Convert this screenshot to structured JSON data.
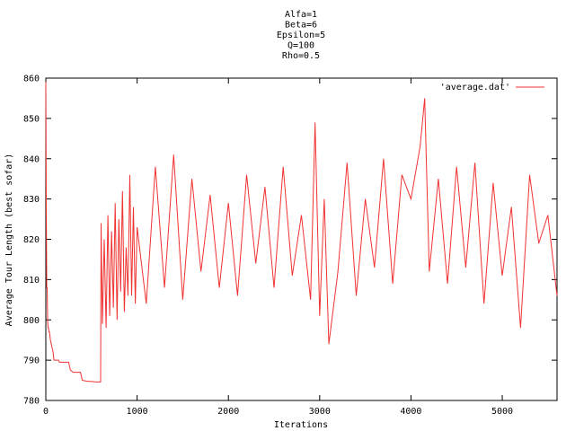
{
  "chart_data": {
    "type": "line",
    "title_lines": [
      "Alfa=1",
      "Beta=6",
      "Epsilon=5",
      "Q=100",
      "Rho=0.5"
    ],
    "xlabel": "Iterations",
    "ylabel": "Average Tour Length (best sofar)",
    "xlim": [
      0,
      5600
    ],
    "ylim": [
      780,
      860
    ],
    "x_ticks": [
      0,
      1000,
      2000,
      3000,
      4000,
      5000
    ],
    "y_ticks": [
      780,
      790,
      800,
      810,
      820,
      830,
      840,
      850,
      860
    ],
    "grid": false,
    "legend_position": "top-right",
    "colors": {
      "series": "#f03232",
      "axes": "#000000"
    },
    "series": [
      {
        "name": "'average.dat'",
        "x": [
          0,
          5,
          10,
          15,
          20,
          25,
          30,
          35,
          40,
          45,
          50,
          60,
          70,
          80,
          90,
          100,
          110,
          120,
          130,
          140,
          150,
          160,
          170,
          180,
          200,
          230,
          250,
          270,
          300,
          330,
          350,
          380,
          400,
          450,
          500,
          550,
          590,
          600,
          605,
          620,
          640,
          660,
          680,
          700,
          720,
          740,
          760,
          780,
          800,
          820,
          840,
          860,
          880,
          900,
          920,
          940,
          960,
          980,
          1000,
          1100,
          1200,
          1300,
          1400,
          1500,
          1600,
          1700,
          1800,
          1900,
          2000,
          2100,
          2200,
          2300,
          2400,
          2500,
          2600,
          2700,
          2800,
          2900,
          2950,
          3000,
          3050,
          3100,
          3200,
          3300,
          3400,
          3500,
          3600,
          3700,
          3800,
          3900,
          4000,
          4100,
          4150,
          4200,
          4300,
          4400,
          4500,
          4600,
          4700,
          4800,
          4900,
          5000,
          5100,
          5200,
          5300,
          5400,
          5500,
          5600
        ],
        "y": [
          859,
          829,
          808,
          808,
          800,
          798,
          798,
          797,
          797,
          796,
          795,
          794,
          793,
          792,
          790,
          790,
          790,
          790,
          790,
          790,
          789.5,
          789.5,
          789.5,
          789.5,
          789.5,
          789.5,
          789.5,
          787.5,
          787,
          787,
          787,
          787,
          785,
          784.8,
          784.7,
          784.6,
          784.6,
          784.6,
          824,
          799,
          820,
          798,
          826,
          801,
          822,
          803,
          829,
          800,
          825,
          807,
          832,
          802,
          818,
          806,
          836,
          806,
          828,
          804,
          823,
          804,
          838,
          808,
          841,
          805,
          835,
          812,
          831,
          808,
          829,
          806,
          836,
          814,
          833,
          808,
          838,
          811,
          826,
          805,
          849,
          801,
          830,
          794,
          812,
          839,
          806,
          830,
          813,
          840,
          809,
          836,
          830,
          843,
          855,
          812,
          835,
          809,
          838,
          813,
          839,
          804,
          834,
          811,
          828,
          798,
          836,
          819,
          826,
          806
        ]
      }
    ]
  }
}
